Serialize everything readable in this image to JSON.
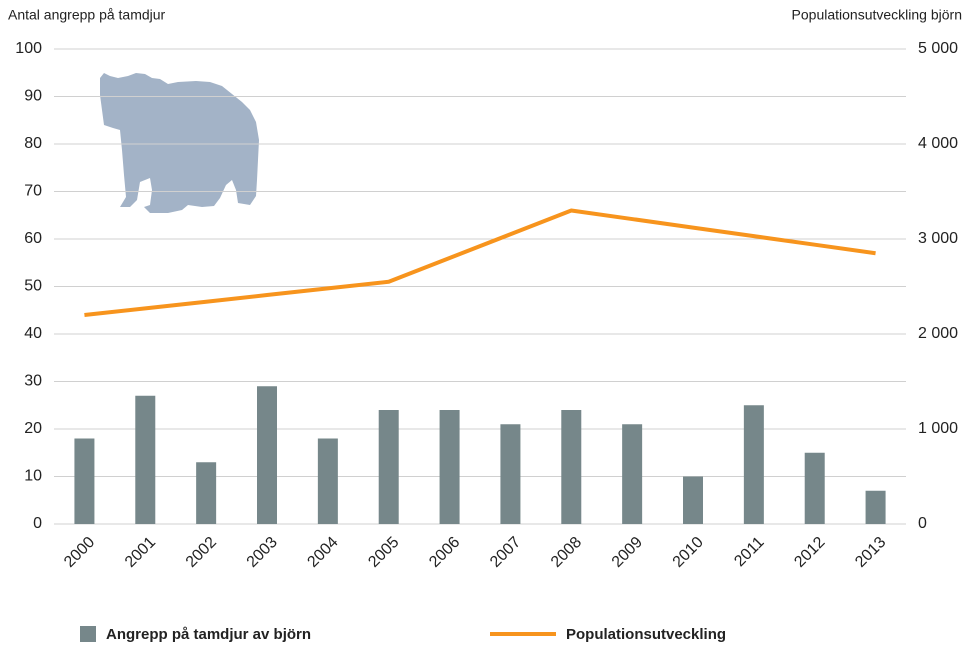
{
  "chart_data": {
    "type": "bar_line",
    "y_title": "Antal angrepp på tamdjur",
    "y2_title": "Populationsutveckling björn",
    "categories": [
      "2000",
      "2001",
      "2002",
      "2003",
      "2004",
      "2005",
      "2006",
      "2007",
      "2008",
      "2009",
      "2010",
      "2011",
      "2012",
      "2013"
    ],
    "series": [
      {
        "name": "Angrepp på tamdjur av björn",
        "type": "bar",
        "color": "#76878a",
        "values": [
          18,
          27,
          13,
          29,
          18,
          24,
          24,
          21,
          24,
          21,
          10,
          25,
          15,
          7
        ]
      },
      {
        "name": "Populationsutveckling",
        "type": "line",
        "axis": "y2",
        "color": "#f7941d",
        "values": [
          2200,
          2270,
          2340,
          2410,
          2480,
          2550,
          2800,
          3050,
          3300,
          3210,
          3120,
          3030,
          2940,
          2850
        ]
      }
    ],
    "ylim": [
      0,
      100
    ],
    "yticks": [
      0,
      10,
      20,
      30,
      40,
      50,
      60,
      70,
      80,
      90,
      100
    ],
    "y2lim": [
      0,
      5000
    ],
    "y2ticks": [
      0,
      {
        "value": 1000,
        "label": "1 000"
      },
      {
        "value": 2000,
        "label": "2 000"
      },
      {
        "value": 3000,
        "label": "3 000"
      },
      {
        "value": 4000,
        "label": "4 000"
      },
      {
        "value": 5000,
        "label": "5 000"
      }
    ],
    "grid": true
  }
}
